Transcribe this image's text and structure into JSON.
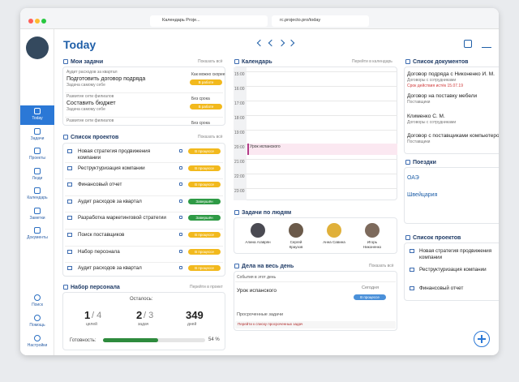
{
  "browser": {
    "tab": "Календарь Proje...",
    "url": "rc.projecto.pro/today"
  },
  "sidebar": {
    "nav": [
      "Today",
      "Задачи",
      "Проекты",
      "Люди",
      "Календарь",
      "Заметки",
      "Документы"
    ],
    "bottom": [
      "Поиск",
      "Помощь",
      "Настройки"
    ]
  },
  "header": {
    "title": "Today"
  },
  "my_tasks": {
    "title": "Мои задачи",
    "link": "Показать всё",
    "items": [
      {
        "project": "Аудит расходов за квартал",
        "title": "Подготовить договор подряда",
        "note": "Задача самому себе",
        "due": "Как можно скорее",
        "status": "В работе"
      },
      {
        "project": "Развитие сети филиалов",
        "title": "Составить бюджет",
        "note": "Задача самому себе",
        "due": "Без срока",
        "status": "В работе"
      },
      {
        "project": "Развитие сети филиалов",
        "due": "Без срока"
      }
    ]
  },
  "projects": {
    "title": "Список проектов",
    "link": "Показать всё",
    "items": [
      {
        "name": "Новая стратегия продвижения компании",
        "status": "В процессе"
      },
      {
        "name": "Реструктуризация компании",
        "status": "В процессе"
      },
      {
        "name": "Финансовый отчет",
        "status": "В процессе"
      },
      {
        "name": "Аудит расходов за квартал",
        "status": "Завершён"
      },
      {
        "name": "Разработка маркетинговой стратегии",
        "status": "Завершён"
      },
      {
        "name": "Поиск поставщиков",
        "status": "В процессе"
      },
      {
        "name": "Набор персонала",
        "status": "В процессе"
      },
      {
        "name": "Аудит расходов за квартал",
        "status": "В процессе"
      }
    ]
  },
  "staffing": {
    "title": "Набор персонала",
    "link": "Перейти в проект",
    "remaining": "Осталось:",
    "stats": [
      {
        "value": "1",
        "total": "/ 4",
        "label": "целей"
      },
      {
        "value": "2",
        "total": "/ 3",
        "label": "задач"
      },
      {
        "value": "349",
        "label": "дней"
      }
    ],
    "readiness_label": "Готовность:",
    "readiness": {
      "value": 54,
      "label": "54 %"
    }
  },
  "calendar": {
    "title": "Календарь",
    "link": "Перейти в календарь",
    "times": [
      "15:00",
      "16:00",
      "17:00",
      "18:00",
      "19:00",
      "20:00",
      "21:00",
      "22:00",
      "23:00"
    ],
    "event": "Урок испанского"
  },
  "people": {
    "title": "Задачи по людям",
    "items": [
      {
        "first": "Алина Агаврян"
      },
      {
        "first": "Сергей",
        "last": "Краузов"
      },
      {
        "first": "Анна Савина"
      },
      {
        "first": "Игорь",
        "last": "Никоненко"
      }
    ]
  },
  "allday": {
    "title": "Дела на весь день",
    "link": "Показать всё",
    "events_title": "События в этот день",
    "event": "Урок испанского",
    "when": "Сегодня",
    "status": "В процессе",
    "overdue_title": "Просроченные задачи",
    "overdue_link": "Перейти к списку просроченных задач"
  },
  "documents": {
    "title": "Список документов",
    "items": [
      {
        "name": "Договор подряда с Никоненко И. М.",
        "group": "Договоры с сотрудниками",
        "warning": "Срок действия истёк 15.07.19"
      },
      {
        "name": "Договор на поставку мебели",
        "group": "Поставщики"
      },
      {
        "name": "Клименко С. М.",
        "group": "Договоры с сотрудниками"
      },
      {
        "name": "Договор с поставщиками компьютеров",
        "group": "Поставщики"
      }
    ]
  },
  "trips": {
    "title": "Поездки",
    "items": [
      "ОАЭ",
      "Швейцария"
    ]
  },
  "projects_right": {
    "title": "Список проектов",
    "items": [
      "Новая стратегия продвижения компании",
      "Реструктуризация компании",
      "Финансовый отчет"
    ]
  }
}
